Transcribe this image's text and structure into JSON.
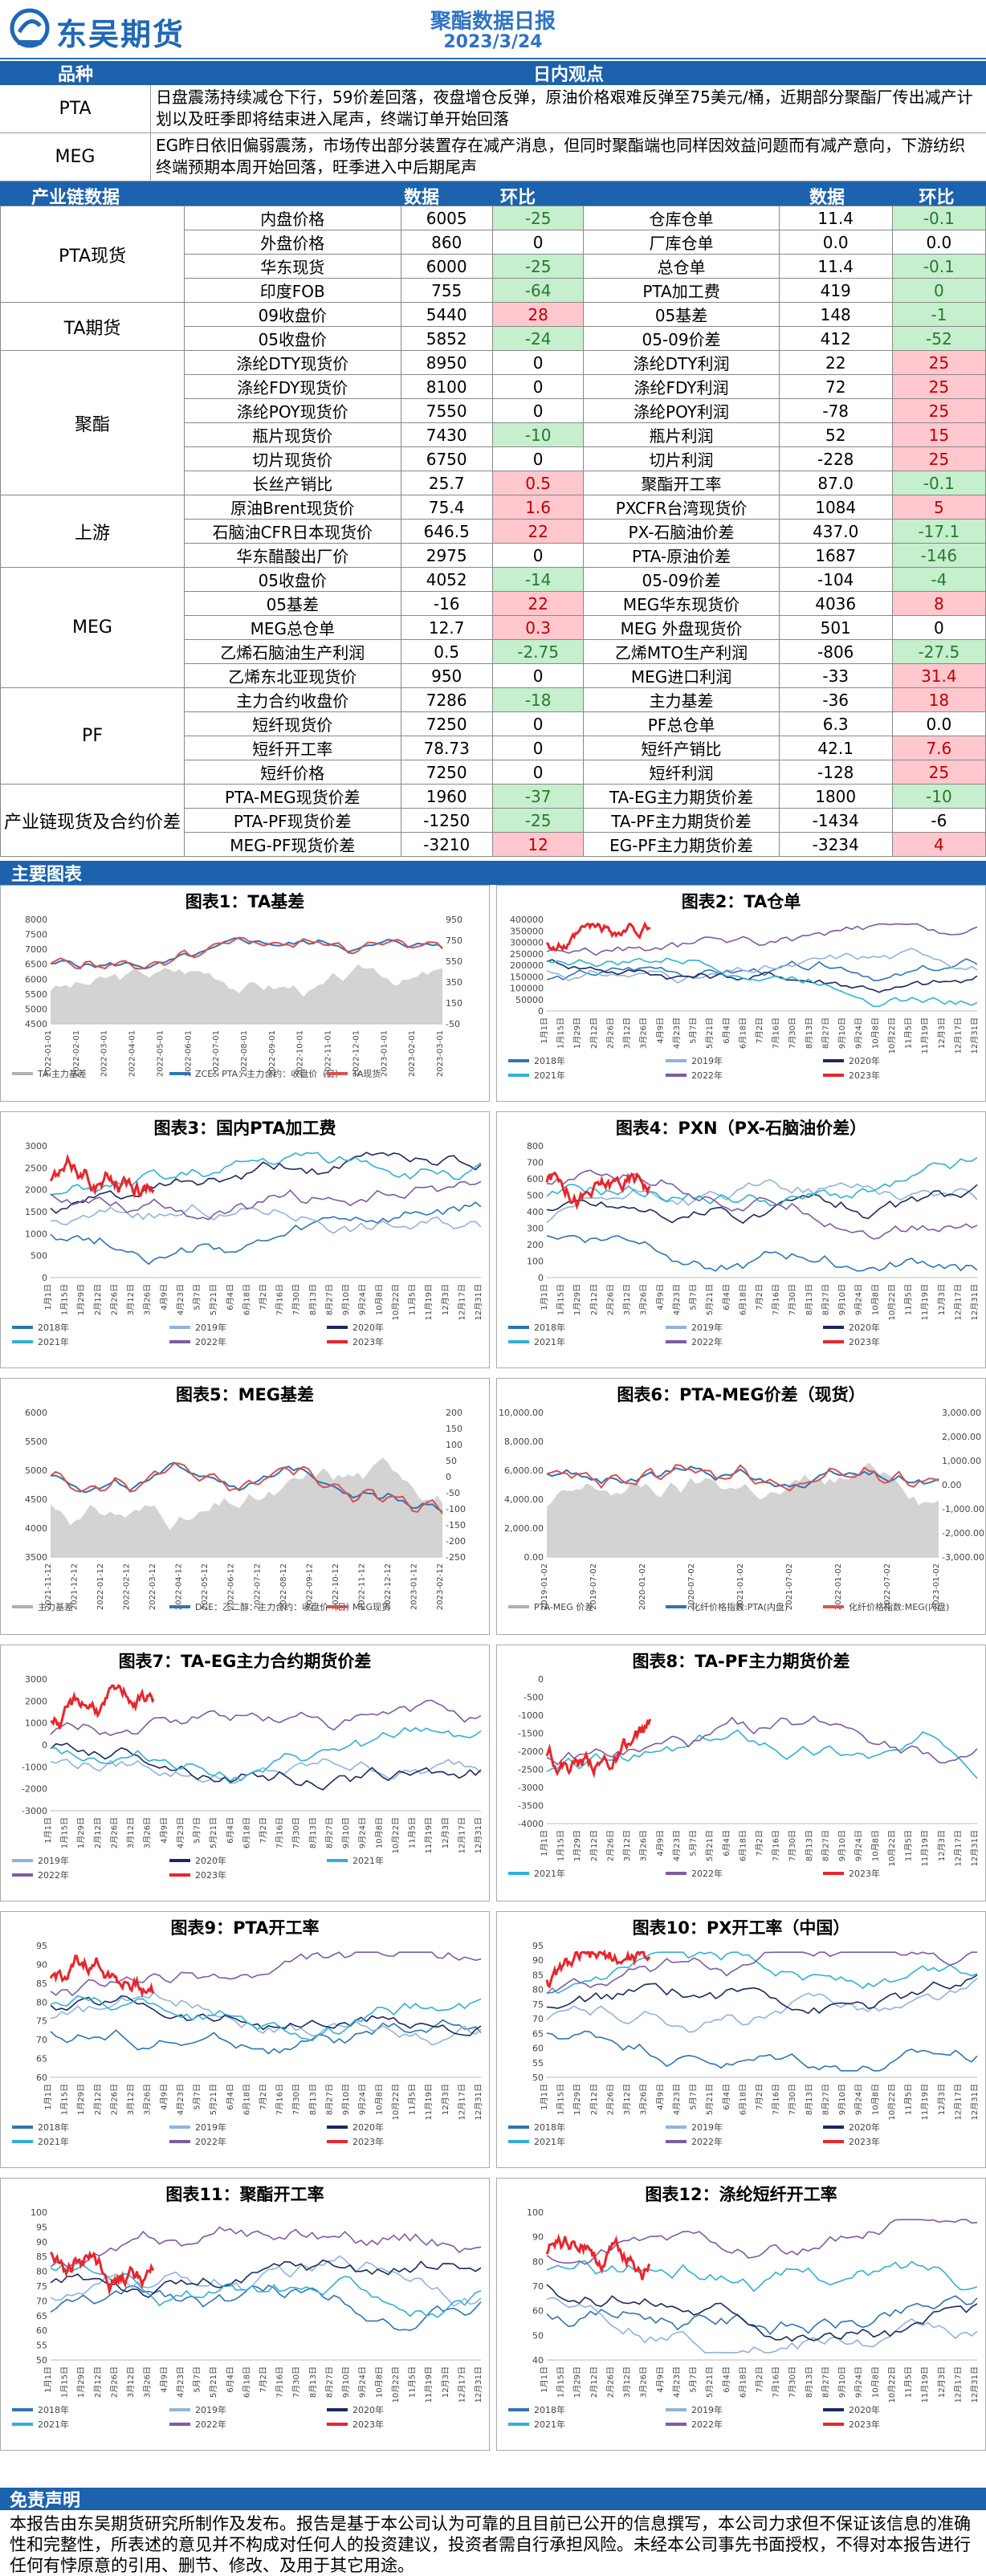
{
  "header": {
    "brand": "东吴期货",
    "title": "聚酯数据日报",
    "date": "2023/3/24"
  },
  "section_headers": {
    "variety": "品种",
    "daily_view": "日内观点",
    "industry_data": "产业链数据",
    "col_data": "数据",
    "col_change": "环比",
    "main_charts": "主要图表",
    "disclaimer": "免责声明"
  },
  "views": [
    {
      "label": "PTA",
      "text": "日盘震荡持续减仓下行，59价差回落，夜盘增仓反弹，原油价格艰难反弹至75美元/桶，近期部分聚酯厂传出减产计划以及旺季即将结束进入尾声，终端订单开始回落"
    },
    {
      "label": "MEG",
      "text": "EG昨日依旧偏弱震荡，市场传出部分装置存在减产消息，但同时聚酯端也同样因效益问题而有减产意向，下游纺织终端预期本周开始回落，旺季进入中后期尾声"
    }
  ],
  "groups": [
    {
      "name": "PTA现货",
      "rows": [
        {
          "l": "内盘价格",
          "v": "6005",
          "c": "-25",
          "cc": "g",
          "l2": "仓库仓单",
          "v2": "11.4",
          "c2": "-0.1",
          "cc2": "g"
        },
        {
          "l": "外盘价格",
          "v": "860",
          "c": "0",
          "cc": "",
          "l2": "厂库仓单",
          "v2": "0.0",
          "c2": "0.0",
          "cc2": ""
        },
        {
          "l": "华东现货",
          "v": "6000",
          "c": "-25",
          "cc": "g",
          "l2": "总仓单",
          "v2": "11.4",
          "c2": "-0.1",
          "cc2": "g"
        },
        {
          "l": "印度FOB",
          "v": "755",
          "c": "-64",
          "cc": "g",
          "l2": "PTA加工费",
          "v2": "419",
          "c2": "0",
          "cc2": "g"
        }
      ]
    },
    {
      "name": "TA期货",
      "rows": [
        {
          "l": "09收盘价",
          "v": "5440",
          "c": "28",
          "cc": "r",
          "l2": "05基差",
          "v2": "148",
          "c2": "-1",
          "cc2": "g"
        },
        {
          "l": "05收盘价",
          "v": "5852",
          "c": "-24",
          "cc": "g",
          "l2": "05-09价差",
          "v2": "412",
          "c2": "-52",
          "cc2": "g"
        }
      ]
    },
    {
      "name": "聚酯",
      "rows": [
        {
          "l": "涤纶DTY现货价",
          "v": "8950",
          "c": "0",
          "cc": "",
          "l2": "涤纶DTY利润",
          "v2": "22",
          "c2": "25",
          "cc2": "r"
        },
        {
          "l": "涤纶FDY现货价",
          "v": "8100",
          "c": "0",
          "cc": "",
          "l2": "涤纶FDY利润",
          "v2": "72",
          "c2": "25",
          "cc2": "r"
        },
        {
          "l": "涤纶POY现货价",
          "v": "7550",
          "c": "0",
          "cc": "",
          "l2": "涤纶POY利润",
          "v2": "-78",
          "c2": "25",
          "cc2": "r"
        },
        {
          "l": "瓶片现货价",
          "v": "7430",
          "c": "-10",
          "cc": "g",
          "l2": "瓶片利润",
          "v2": "52",
          "c2": "15",
          "cc2": "r"
        },
        {
          "l": "切片现货价",
          "v": "6750",
          "c": "0",
          "cc": "",
          "l2": "切片利润",
          "v2": "-228",
          "c2": "25",
          "cc2": "r"
        },
        {
          "l": "长丝产销比",
          "v": "25.7",
          "c": "0.5",
          "cc": "r",
          "l2": "聚酯开工率",
          "v2": "87.0",
          "c2": "-0.1",
          "cc2": "g"
        }
      ]
    },
    {
      "name": "上游",
      "rows": [
        {
          "l": "原油Brent现货价",
          "v": "75.4",
          "c": "1.6",
          "cc": "r",
          "l2": "PXCFR台湾现货价",
          "v2": "1084",
          "c2": "5",
          "cc2": "r"
        },
        {
          "l": "石脑油CFR日本现货价",
          "v": "646.5",
          "c": "22",
          "cc": "r",
          "l2": "PX-石脑油价差",
          "v2": "437.0",
          "c2": "-17.1",
          "cc2": "g"
        },
        {
          "l": "华东醋酸出厂价",
          "v": "2975",
          "c": "0",
          "cc": "",
          "l2": "PTA-原油价差",
          "v2": "1687",
          "c2": "-146",
          "cc2": "g"
        }
      ]
    },
    {
      "name": "MEG",
      "rows": [
        {
          "l": "05收盘价",
          "v": "4052",
          "c": "-14",
          "cc": "g",
          "l2": "05-09价差",
          "v2": "-104",
          "c2": "-4",
          "cc2": "g"
        },
        {
          "l": "05基差",
          "v": "-16",
          "c": "22",
          "cc": "r",
          "l2": "MEG华东现货价",
          "v2": "4036",
          "c2": "8",
          "cc2": "r"
        },
        {
          "l": "MEG总仓单",
          "v": "12.7",
          "c": "0.3",
          "cc": "r",
          "l2": "MEG 外盘现货价",
          "v2": "501",
          "c2": "0",
          "cc2": ""
        },
        {
          "l": "乙烯石脑油生产利润",
          "v": "0.5",
          "c": "-2.75",
          "cc": "g",
          "l2": "乙烯MTO生产利润",
          "v2": "-806",
          "c2": "-27.5",
          "cc2": "g"
        },
        {
          "l": "乙烯东北亚现货价",
          "v": "950",
          "c": "0",
          "cc": "",
          "l2": "MEG进口利润",
          "v2": "-33",
          "c2": "31.4",
          "cc2": "r"
        }
      ]
    },
    {
      "name": "PF",
      "rows": [
        {
          "l": "主力合约收盘价",
          "v": "7286",
          "c": "-18",
          "cc": "g",
          "l2": "主力基差",
          "v2": "-36",
          "c2": "18",
          "cc2": "r"
        },
        {
          "l": "短纤现货价",
          "v": "7250",
          "c": "0",
          "cc": "",
          "l2": "PF总仓单",
          "v2": "6.3",
          "c2": "0.0",
          "cc2": ""
        },
        {
          "l": "短纤开工率",
          "v": "78.73",
          "c": "0",
          "cc": "",
          "l2": "短纤产销比",
          "v2": "42.1",
          "c2": "7.6",
          "cc2": "r"
        },
        {
          "l": "短纤价格",
          "v": "7250",
          "c": "0",
          "cc": "",
          "l2": "短纤利润",
          "v2": "-128",
          "c2": "25",
          "cc2": "r"
        }
      ]
    },
    {
      "name": "产业链现货及合约价差",
      "rows": [
        {
          "l": "PTA-MEG现货价差",
          "v": "1960",
          "c": "-37",
          "cc": "g",
          "l2": "TA-EG主力期货价差",
          "v2": "1800",
          "c2": "-10",
          "cc2": "g"
        },
        {
          "l": "PTA-PF现货价差",
          "v": "-1250",
          "c": "-25",
          "cc": "g",
          "l2": "TA-PF主力期货价差",
          "v2": "-1434",
          "c2": "-6",
          "cc2": ""
        },
        {
          "l": "MEG-PF现货价差",
          "v": "-3210",
          "c": "12",
          "cc": "r",
          "l2": "EG-PF主力期货价差",
          "v2": "-3234",
          "c2": "4",
          "cc2": "r"
        }
      ]
    }
  ],
  "colors": {
    "brand": "#1c62ac",
    "green_bg": "#c6efce",
    "red_bg": "#ffc7ce",
    "y2018": "#2e75b6",
    "y2019": "#8fb4dc",
    "y2020": "#1a2a5e",
    "y2021": "#30b0d8",
    "y2022": "#7d5ba6",
    "y2023": "#e8262b"
  },
  "charts": [
    {
      "id": 1,
      "title": "图表1：TA基差",
      "kind": "dual",
      "xlabels": [
        "2022-01-01",
        "2022-02-01",
        "2022-03-01",
        "2022-04-01",
        "2022-05-01",
        "2022-06-01",
        "2022-07-01",
        "2022-08-01",
        "2022-09-01",
        "2022-10-01",
        "2022-11-01",
        "2022-12-01",
        "2023-01-01",
        "2023-02-01",
        "2023-03-01"
      ],
      "yleft": [
        "8000",
        "7500",
        "7000",
        "6500",
        "6000",
        "5500",
        "5000",
        "4500"
      ],
      "yright": [
        "950",
        "750",
        "550",
        "350",
        "150",
        "-50"
      ],
      "legend": [
        "TA 主力基差",
        "ZCE：PTA：主力合约：收盘价（日）",
        "TA现货"
      ]
    },
    {
      "id": 2,
      "title": "图表2：TA仓单",
      "kind": "season",
      "yleft": [
        "400000",
        "350000",
        "300000",
        "250000",
        "200000",
        "150000",
        "100000",
        "50000",
        "0"
      ],
      "legend": [
        "2018年",
        "2019年",
        "2020年",
        "2021年",
        "2022年",
        "2023年"
      ]
    },
    {
      "id": 3,
      "title": "图表3：国内PTA加工费",
      "kind": "season",
      "yleft": [
        "3000",
        "2500",
        "2000",
        "1500",
        "1000",
        "500",
        "0"
      ],
      "legend": [
        "2018年",
        "2019年",
        "2020年",
        "2021年",
        "2022年",
        "2023年"
      ]
    },
    {
      "id": 4,
      "title": "图表4：PXN（PX-石脑油价差）",
      "kind": "season",
      "yleft": [
        "800",
        "700",
        "600",
        "500",
        "400",
        "300",
        "200",
        "100",
        "0"
      ],
      "legend": [
        "2018年",
        "2019年",
        "2020年",
        "2021年",
        "2022年",
        "2023年"
      ]
    },
    {
      "id": 5,
      "title": "图表5：MEG基差",
      "kind": "dual",
      "xlabels": [
        "2021-11-12",
        "2021-12-12",
        "2022-01-12",
        "2022-02-12",
        "2022-03-12",
        "2022-04-12",
        "2022-05-12",
        "2022-06-12",
        "2022-07-12",
        "2022-08-12",
        "2022-09-12",
        "2022-10-12",
        "2022-11-12",
        "2022-12-12",
        "2023-01-12",
        "2023-02-12"
      ],
      "yleft": [
        "6000",
        "5500",
        "5000",
        "4500",
        "4000",
        "3500"
      ],
      "yright": [
        "200",
        "150",
        "100",
        "50",
        "0",
        "-50",
        "-100",
        "-150",
        "-200",
        "-250"
      ],
      "legend": [
        "主力基差",
        "DCE：乙二醇：主力合约：收盘价（日）",
        "MEG现货"
      ]
    },
    {
      "id": 6,
      "title": "图表6：PTA-MEG价差（现货）",
      "kind": "dual",
      "xlabels": [
        "2019-01-02",
        "2019-07-02",
        "2020-01-02",
        "2020-07-02",
        "2021-01-02",
        "2021-07-02",
        "2022-01-02",
        "2022-07-02",
        "2023-01-02"
      ],
      "yleft": [
        "10,000.00",
        "8,000.00",
        "6,000.00",
        "4,000.00",
        "2,000.00",
        "0.00"
      ],
      "yright": [
        "3,000.00",
        "2,000.00",
        "1,000.00",
        "0.00",
        "-1,000.00",
        "-2,000.00",
        "-3,000.00"
      ],
      "legend": [
        "PTA-MEG 价差",
        "化纤价格指数:PTA(内盘)",
        "化纤价格指数:MEG(内盘)"
      ]
    },
    {
      "id": 7,
      "title": "图表7：TA-EG主力合约期货价差",
      "kind": "season",
      "yleft": [
        "3000",
        "2000",
        "1000",
        "0",
        "-1000",
        "-2000",
        "-3000"
      ],
      "legend": [
        "2019年",
        "2020年",
        "2021年",
        "2022年",
        "2023年"
      ]
    },
    {
      "id": 8,
      "title": "图表8：TA-PF主力期货价差",
      "kind": "season",
      "yleft": [
        "0",
        "-500",
        "-1000",
        "-1500",
        "-2000",
        "-2500",
        "-3000",
        "-3500",
        "-4000"
      ],
      "legend": [
        "2021年",
        "2022年",
        "2023年"
      ]
    },
    {
      "id": 9,
      "title": "图表9：PTA开工率",
      "kind": "season",
      "yleft": [
        "95",
        "90",
        "85",
        "80",
        "75",
        "70",
        "65",
        "60"
      ],
      "legend": [
        "2018年",
        "2019年",
        "2020年",
        "2021年",
        "2022年",
        "2023年"
      ]
    },
    {
      "id": 10,
      "title": "图表10：PX开工率（中国）",
      "kind": "season",
      "yleft": [
        "95",
        "90",
        "85",
        "80",
        "75",
        "70",
        "65",
        "60",
        "55",
        "50"
      ],
      "legend": [
        "2018年",
        "2019年",
        "2020年",
        "2021年",
        "2022年",
        "2023年"
      ]
    },
    {
      "id": 11,
      "title": "图表11：聚酯开工率",
      "kind": "season",
      "yleft": [
        "100",
        "95",
        "90",
        "85",
        "80",
        "75",
        "70",
        "65",
        "60",
        "55",
        "50"
      ],
      "legend": [
        "2018年",
        "2019年",
        "2020年",
        "2021年",
        "2022年",
        "2023年"
      ]
    },
    {
      "id": 12,
      "title": "图表12：涤纶短纤开工率",
      "kind": "season",
      "yleft": [
        "100",
        "90",
        "80",
        "70",
        "60",
        "50",
        "40"
      ],
      "legend": [
        "2018年",
        "2019年",
        "2020年",
        "2021年",
        "2022年",
        "2023年"
      ]
    }
  ],
  "season_xlabels": [
    "1月1日",
    "1月15日",
    "1月29日",
    "2月12日",
    "2月26日",
    "3月12日",
    "3月26日",
    "4月9日",
    "4月23日",
    "5月7日",
    "5月21日",
    "6月4日",
    "6月18日",
    "7月2日",
    "7月16日",
    "7月30日",
    "8月13日",
    "8月27日",
    "9月10日",
    "9月24日",
    "10月8日",
    "10月22日",
    "11月5日",
    "11月19日",
    "12月3日",
    "12月17日",
    "12月31日"
  ],
  "disclaimer": "本报告由东吴期货研究所制作及发布。报告是基于本公司认为可靠的且目前已公开的信息撰写，本公司力求但不保证该信息的准确性和完整性，所表述的意见并不构成对任何人的投资建议，投资者需自行承担风险。未经本公司事先书面授权，不得对本报告进行任何有悖原意的引用、删节、修改、及用于其它用途。"
}
